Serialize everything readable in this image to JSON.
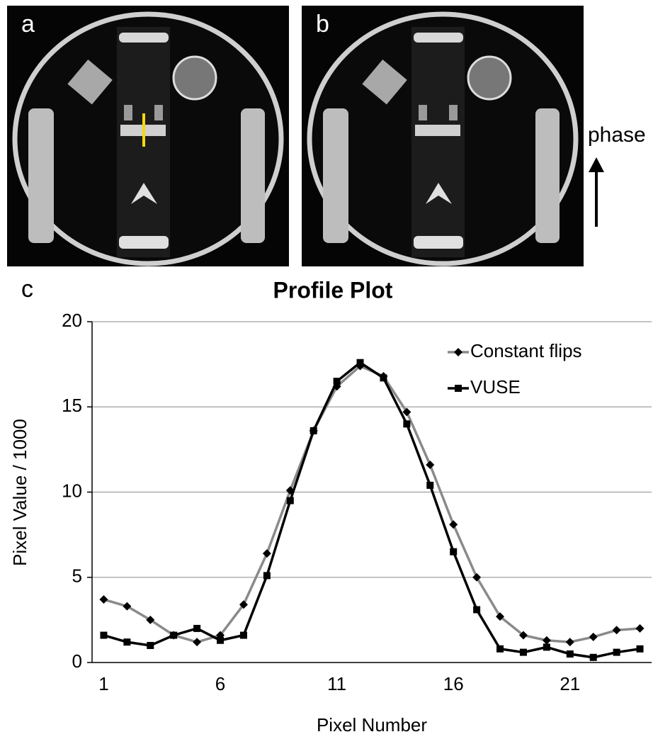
{
  "figure": {
    "panel_labels": [
      "a",
      "b",
      "c"
    ],
    "direction_label": "phase"
  },
  "chart_data": {
    "type": "line",
    "title": "Profile Plot",
    "x_label": "Pixel Number",
    "y_label": "Pixel Value / 1000",
    "x": [
      1,
      2,
      3,
      4,
      5,
      6,
      7,
      8,
      9,
      10,
      11,
      12,
      13,
      14,
      15,
      16,
      17,
      18,
      19,
      20,
      21,
      22,
      23,
      24
    ],
    "series": [
      {
        "name": "Constant flips",
        "color": "#8a8a8a",
        "marker": "diamond",
        "values": [
          3.7,
          3.3,
          2.5,
          1.6,
          1.2,
          1.6,
          3.4,
          6.4,
          10.1,
          13.6,
          16.2,
          17.4,
          16.8,
          14.7,
          11.6,
          8.1,
          5.0,
          2.7,
          1.6,
          1.3,
          1.2,
          1.5,
          1.9,
          2.0
        ]
      },
      {
        "name": "VUSE",
        "color": "#000000",
        "marker": "square",
        "values": [
          1.6,
          1.2,
          1.0,
          1.6,
          2.0,
          1.3,
          1.6,
          5.1,
          9.5,
          13.6,
          16.5,
          17.6,
          16.7,
          14.0,
          10.4,
          6.5,
          3.1,
          0.8,
          0.6,
          0.9,
          0.5,
          0.3,
          0.6,
          0.8
        ]
      }
    ],
    "xlim": [
      0.5,
      24.5
    ],
    "xticks": [
      1,
      6,
      11,
      16,
      21
    ],
    "ylim": [
      0,
      20
    ],
    "yticks": [
      0,
      5,
      10,
      15,
      20
    ],
    "grid": true,
    "legend": "top-right"
  }
}
